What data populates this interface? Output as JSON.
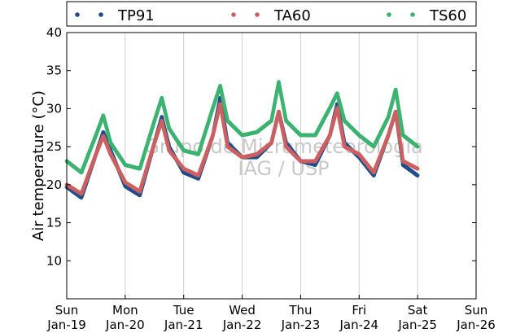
{
  "chart_data": {
    "type": "scatter",
    "title": "",
    "xlabel": "",
    "ylabel": "Air temperature (°C)",
    "ylim": [
      5,
      40
    ],
    "xlim": [
      "2025-01-19",
      "2025-01-26"
    ],
    "yticks": [
      10,
      15,
      20,
      25,
      30,
      35,
      40
    ],
    "xticks": [
      {
        "day": "Sun",
        "date": "Jan-19"
      },
      {
        "day": "Mon",
        "date": "Jan-20"
      },
      {
        "day": "Tue",
        "date": "Jan-21"
      },
      {
        "day": "Wed",
        "date": "Jan-22"
      },
      {
        "day": "Thu",
        "date": "Jan-23"
      },
      {
        "day": "Fri",
        "date": "Jan-24"
      },
      {
        "day": "Sat",
        "date": "Jan-25"
      },
      {
        "day": "Sun",
        "date": "Jan-26"
      }
    ],
    "grid": "vertical",
    "legend_placement": "top",
    "watermark": [
      "Grupo de Micrometeorologia",
      "IAG / USP"
    ],
    "series": [
      {
        "name": "TP91",
        "color": "#1f4e8c",
        "x": [
          "2025-01-19 00:00",
          "2025-01-19 06:00",
          "2025-01-19 12:00",
          "2025-01-19 15:00",
          "2025-01-19 18:00",
          "2025-01-20 00:00",
          "2025-01-20 06:00",
          "2025-01-20 12:00",
          "2025-01-20 15:00",
          "2025-01-20 18:00",
          "2025-01-21 00:00",
          "2025-01-21 06:00",
          "2025-01-21 12:00",
          "2025-01-21 15:00",
          "2025-01-21 18:00",
          "2025-01-22 00:00",
          "2025-01-22 06:00",
          "2025-01-22 12:00",
          "2025-01-22 15:00",
          "2025-01-22 18:00",
          "2025-01-23 00:00",
          "2025-01-23 06:00",
          "2025-01-23 12:00",
          "2025-01-23 15:00",
          "2025-01-23 18:00",
          "2025-01-24 00:00",
          "2025-01-24 06:00",
          "2025-01-24 12:00",
          "2025-01-24 15:00",
          "2025-01-24 18:00",
          "2025-01-25 00:00"
        ],
        "y": [
          19.7,
          18.3,
          24.0,
          26.9,
          24.5,
          19.8,
          18.6,
          25.5,
          28.9,
          25.0,
          21.6,
          20.8,
          26.5,
          31.4,
          25.5,
          23.6,
          23.6,
          25.5,
          29.6,
          25.5,
          23.1,
          22.6,
          26.5,
          30.6,
          25.5,
          23.6,
          21.2,
          26.5,
          29.6,
          22.6,
          21.2
        ]
      },
      {
        "name": "TA60",
        "color": "#cc6060",
        "x": [
          "2025-01-19 00:00",
          "2025-01-19 06:00",
          "2025-01-19 12:00",
          "2025-01-19 15:00",
          "2025-01-19 18:00",
          "2025-01-20 00:00",
          "2025-01-20 06:00",
          "2025-01-20 12:00",
          "2025-01-20 15:00",
          "2025-01-20 18:00",
          "2025-01-21 00:00",
          "2025-01-21 06:00",
          "2025-01-21 12:00",
          "2025-01-21 15:00",
          "2025-01-21 18:00",
          "2025-01-22 00:00",
          "2025-01-22 06:00",
          "2025-01-22 12:00",
          "2025-01-22 15:00",
          "2025-01-22 18:00",
          "2025-01-23 00:00",
          "2025-01-23 06:00",
          "2025-01-23 12:00",
          "2025-01-23 15:00",
          "2025-01-23 18:00",
          "2025-01-24 00:00",
          "2025-01-24 06:00",
          "2025-01-24 12:00",
          "2025-01-24 15:00",
          "2025-01-24 18:00",
          "2025-01-25 00:00"
        ],
        "y": [
          20.0,
          18.8,
          24.0,
          26.4,
          24.0,
          20.3,
          19.1,
          25.5,
          28.4,
          24.5,
          22.1,
          21.2,
          26.5,
          30.6,
          25.0,
          23.6,
          24.0,
          25.5,
          29.6,
          25.0,
          23.1,
          23.1,
          26.5,
          30.1,
          25.0,
          24.0,
          21.6,
          26.5,
          29.6,
          23.1,
          22.1
        ]
      },
      {
        "name": "TS60",
        "color": "#3cb371",
        "x": [
          "2025-01-19 00:00",
          "2025-01-19 06:00",
          "2025-01-19 12:00",
          "2025-01-19 15:00",
          "2025-01-19 18:00",
          "2025-01-20 00:00",
          "2025-01-20 06:00",
          "2025-01-20 12:00",
          "2025-01-20 15:00",
          "2025-01-20 18:00",
          "2025-01-21 00:00",
          "2025-01-21 06:00",
          "2025-01-21 12:00",
          "2025-01-21 15:00",
          "2025-01-21 18:00",
          "2025-01-22 00:00",
          "2025-01-22 06:00",
          "2025-01-22 12:00",
          "2025-01-22 15:00",
          "2025-01-22 18:00",
          "2025-01-23 00:00",
          "2025-01-23 06:00",
          "2025-01-23 12:00",
          "2025-01-23 15:00",
          "2025-01-23 18:00",
          "2025-01-24 00:00",
          "2025-01-24 06:00",
          "2025-01-24 12:00",
          "2025-01-24 15:00",
          "2025-01-24 18:00",
          "2025-01-25 00:00"
        ],
        "y": [
          23.1,
          21.6,
          26.5,
          29.1,
          25.5,
          22.6,
          22.1,
          28.4,
          31.4,
          27.4,
          24.5,
          24.0,
          30.1,
          33.0,
          28.4,
          26.5,
          26.9,
          28.4,
          33.5,
          28.4,
          26.5,
          26.5,
          30.1,
          32.0,
          28.4,
          26.5,
          25.0,
          28.9,
          32.5,
          26.5,
          25.0
        ]
      }
    ]
  }
}
